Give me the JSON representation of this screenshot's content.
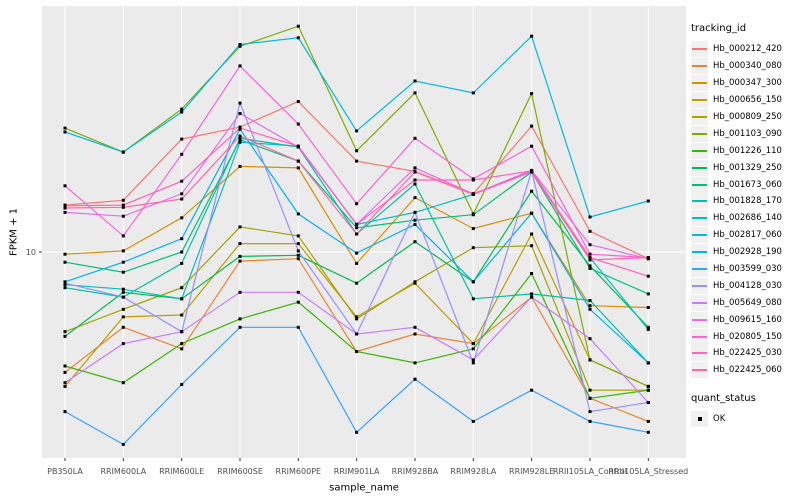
{
  "figure": {
    "background": "#FFFFFF",
    "panel_background": "#EBEBEB",
    "gridline_color": "#FFFFFF",
    "tick_color": "#333333",
    "axis_text_color": "#4D4D4D",
    "point_color": "#000000",
    "legend_key_background": "#F0F0F0"
  },
  "legend": {
    "tracking_title": "tracking_id",
    "quant_title": "quant_status",
    "quant_items": [
      {
        "label": "OK",
        "marker": "black-square"
      }
    ]
  },
  "chart_data": {
    "type": "line",
    "title": "",
    "xlabel": "sample_name",
    "ylabel": "FPKM + 1",
    "y_scale": "log10",
    "y_breaks": [
      10
    ],
    "y_tick_labels": [
      "10"
    ],
    "ylim": [
      1.55,
      96
    ],
    "grid": "major",
    "legend_position": "right",
    "point_marker": "filled-square",
    "quant_status": "OK",
    "categories": [
      "PB350LA",
      "RRIM600LA",
      "RRIM600LE",
      "RRIM600SE",
      "RRIM600PE",
      "RRIM901LA",
      "RRIM928BA",
      "RRIM928LA",
      "RRIM928LE",
      "RRII105LA_Control",
      "RRII105LA_Stressed"
    ],
    "series": [
      {
        "name": "Hb_000212_420",
        "color": "#F8766D",
        "values": [
          15.4,
          16.1,
          28.3,
          31.6,
          40.0,
          23.1,
          21.0,
          17.1,
          31.9,
          12.1,
          9.4
        ]
      },
      {
        "name": "Hb_000340_080",
        "color": "#EA8331",
        "values": [
          3.3,
          5.0,
          4.1,
          9.2,
          9.4,
          4.0,
          4.7,
          4.3,
          6.6,
          2.6,
          2.1
        ]
      },
      {
        "name": "Hb_000347_300",
        "color": "#D89000",
        "values": [
          9.8,
          10.1,
          13.7,
          22.0,
          21.7,
          9.0,
          16.5,
          12.4,
          14.3,
          6.1,
          6.0
        ]
      },
      {
        "name": "Hb_000656_150",
        "color": "#C09B00",
        "values": [
          2.9,
          5.5,
          5.6,
          10.8,
          10.8,
          5.5,
          7.5,
          4.3,
          11.8,
          3.7,
          2.9
        ]
      },
      {
        "name": "Hb_000809_250",
        "color": "#A3A500",
        "values": [
          4.8,
          5.9,
          7.2,
          12.6,
          11.6,
          5.4,
          7.6,
          10.4,
          10.6,
          2.8,
          2.8
        ]
      },
      {
        "name": "Hb_001103_090",
        "color": "#7CAE00",
        "values": [
          31.3,
          25.1,
          37.3,
          66.5,
          80.0,
          25.4,
          43.3,
          14.2,
          43.0,
          3.7,
          2.9
        ]
      },
      {
        "name": "Hb_001226_110",
        "color": "#39B600",
        "values": [
          3.5,
          3.0,
          4.3,
          5.4,
          6.3,
          4.0,
          3.6,
          4.1,
          8.2,
          2.6,
          2.8
        ]
      },
      {
        "name": "Hb_001329_250",
        "color": "#00BB4E",
        "values": [
          4.6,
          6.9,
          6.5,
          9.6,
          9.7,
          7.5,
          11.0,
          7.6,
          17.5,
          8.8,
          5.0
        ]
      },
      {
        "name": "Hb_001673_060",
        "color": "#00BF7D",
        "values": [
          9.1,
          8.3,
          10.0,
          28.1,
          23.1,
          12.5,
          13.4,
          14.1,
          20.9,
          8.6,
          6.8
        ]
      },
      {
        "name": "Hb_001828_170",
        "color": "#00C1A3",
        "values": [
          7.2,
          6.6,
          9.0,
          28.5,
          26.3,
          11.8,
          18.7,
          6.5,
          6.8,
          6.4,
          3.6
        ]
      },
      {
        "name": "Hb_002686_140",
        "color": "#00BFC4",
        "values": [
          7.4,
          7.1,
          6.5,
          27.5,
          26.5,
          12.9,
          14.4,
          17.0,
          21.1,
          9.5,
          4.9
        ]
      },
      {
        "name": "Hb_002817_060",
        "color": "#00BAE0",
        "values": [
          30.2,
          25.1,
          36.3,
          67.6,
          71.9,
          30.5,
          48.3,
          43.3,
          73.0,
          13.8,
          16.0
        ]
      },
      {
        "name": "Hb_002928_190",
        "color": "#00B0F6",
        "values": [
          7.6,
          9.1,
          11.3,
          31.0,
          14.2,
          9.9,
          12.9,
          7.6,
          14.3,
          5.9,
          3.6
        ]
      },
      {
        "name": "Hb_003599_030",
        "color": "#35A2FF",
        "values": [
          2.3,
          1.7,
          2.95,
          5.0,
          5.0,
          1.9,
          3.1,
          2.1,
          2.8,
          2.1,
          1.9
        ]
      },
      {
        "name": "Hb_004128_030",
        "color": "#9590FF",
        "values": [
          7.5,
          6.6,
          4.8,
          39.4,
          10.1,
          4.7,
          14.4,
          3.6,
          21.1,
          2.3,
          2.5
        ]
      },
      {
        "name": "Hb_005649_080",
        "color": "#C77CFF",
        "values": [
          3.0,
          4.3,
          4.8,
          6.9,
          6.9,
          4.7,
          5.0,
          3.7,
          6.6,
          4.5,
          2.5
        ]
      },
      {
        "name": "Hb_009615_160",
        "color": "#E76BF3",
        "values": [
          14.4,
          13.9,
          17.1,
          35.8,
          26.3,
          12.9,
          21.7,
          17.1,
          21.2,
          10.7,
          9.4
        ]
      },
      {
        "name": "Hb_020805_150",
        "color": "#FA62DB",
        "values": [
          18.4,
          11.6,
          24.6,
          55.5,
          32.5,
          15.6,
          28.5,
          19.6,
          26.5,
          9.8,
          9.5
        ]
      },
      {
        "name": "Hb_022425_030",
        "color": "#FF61C3",
        "values": [
          15.3,
          15.4,
          19.2,
          31.3,
          26.5,
          12.9,
          19.4,
          19.4,
          21.1,
          9.5,
          8.0
        ]
      },
      {
        "name": "Hb_022425_060",
        "color": "#FF67A4",
        "values": [
          15.0,
          15.1,
          16.3,
          29.1,
          23.1,
          11.8,
          20.9,
          17.0,
          20.9,
          9.3,
          9.5
        ]
      }
    ]
  }
}
